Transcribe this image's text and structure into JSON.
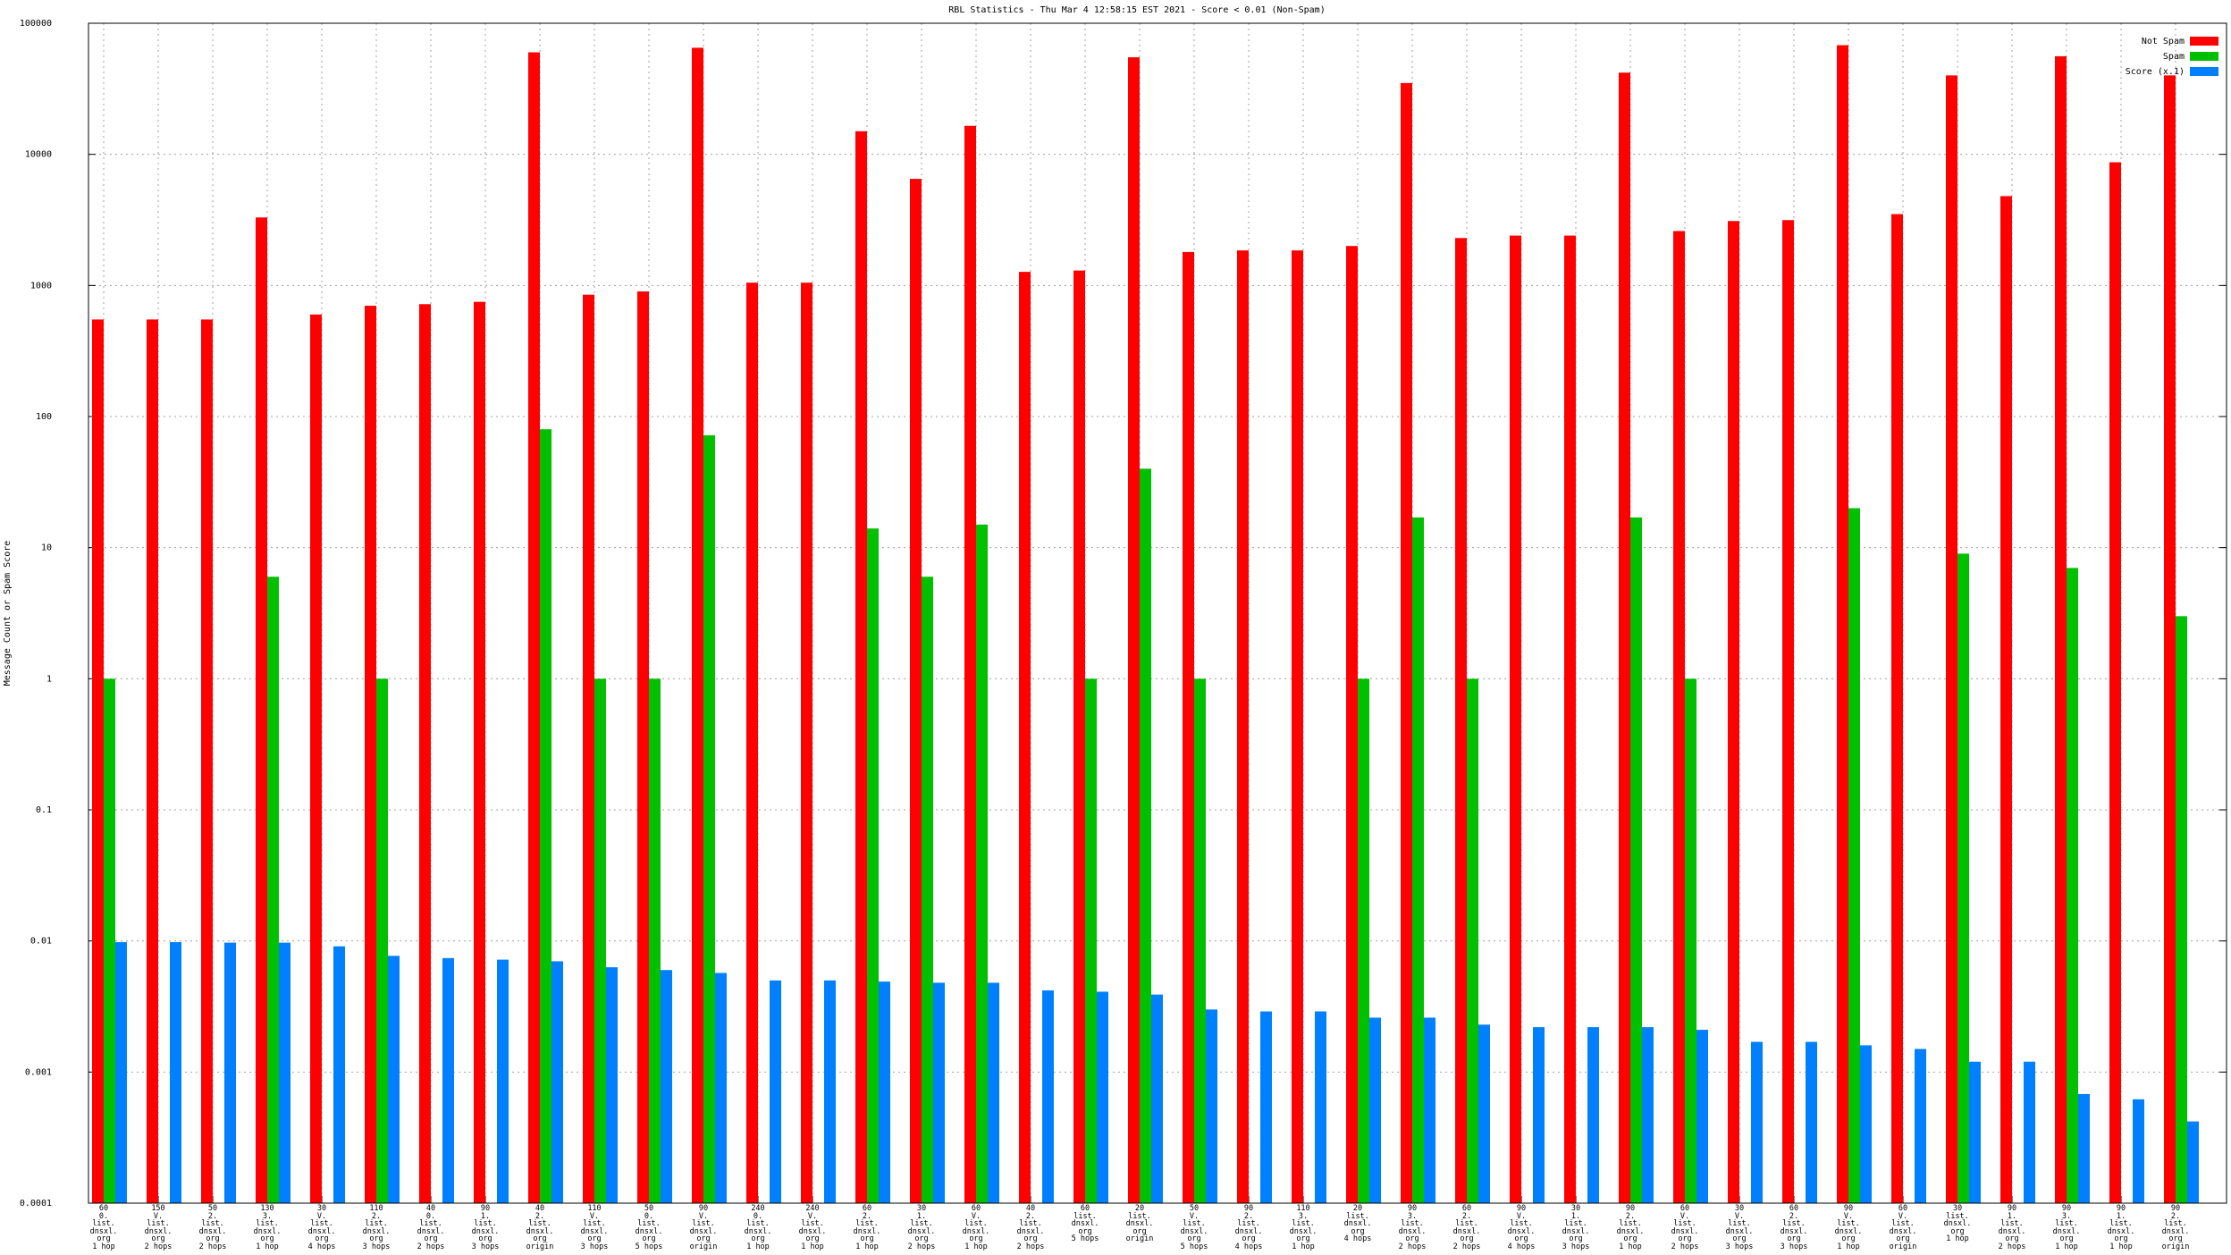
{
  "chart_data": {
    "type": "bar",
    "title": "RBL Statistics - Thu Mar  4 12:58:15 EST 2021 - Score < 0.01 (Non-Spam)",
    "y_label": "Message Count or Spam Score",
    "categories": [
      "60\n0.\nlist.\ndnsxl.\norg\n1 hop",
      "150\nV.\nlist.\ndnsxl.\norg\n2 hops",
      "50\n2.\nlist.\ndnsxl.\norg\n2 hops",
      "130\n3.\nlist.\ndnsxl.\norg\n1 hop",
      "30\nV.\nlist.\ndnsxl.\norg\n4 hops",
      "110\n2.\nlist.\ndnsxl.\norg\n3 hops",
      "40\n0.\nlist.\ndnsxl.\norg\n2 hops",
      "90\n1.\nlist.\ndnsxl.\norg\n3 hops",
      "40\n2.\nlist.\ndnsxl.\norg\norigin",
      "110\nV.\nlist.\ndnsxl.\norg\n3 hops",
      "50\n0.\nlist.\ndnsxl.\norg\n5 hops",
      "90\nV.\nlist.\ndnsxl.\norg\norigin",
      "240\n0.\nlist.\ndnsxl.\norg\n1 hop",
      "240\nV.\nlist.\ndnsxl.\norg\n1 hop",
      "60\n2.\nlist.\ndnsxl.\norg\n1 hop",
      "30\n1.\nlist.\ndnsxl.\norg\n2 hops",
      "60\nV.\nlist.\ndnsxl.\norg\n1 hop",
      "40\n2.\nlist.\ndnsxl.\norg\n2 hops",
      "60\nlist.\ndnsxl.\norg\n5 hops",
      "20\nlist.\ndnsxl.\norg\norigin",
      "50\nV.\nlist.\ndnsxl.\norg\n5 hops",
      "90\n2.\nlist.\ndnsxl.\norg\n4 hops",
      "110\n3.\nlist.\ndnsxl.\norg\n1 hop",
      "20\nlist.\ndnsxl.\norg\n4 hops",
      "90\n3.\nlist.\ndnsxl.\norg\n2 hops",
      "60\n2.\nlist.\ndnsxl.\norg\n2 hops",
      "90\nV.\nlist.\ndnsxl.\norg\n4 hops",
      "30\n1.\nlist.\ndnsxl.\norg\n3 hops",
      "90\n2.\nlist.\ndnsxl.\norg\n1 hop",
      "60\nV.\nlist.\ndnsxl.\norg\n2 hops",
      "30\nV.\nlist.\ndnsxl.\norg\n3 hops",
      "60\n2.\nlist.\ndnsxl.\norg\n3 hops",
      "90\nV.\nlist.\ndnsxl.\norg\n1 hop",
      "60\nV.\nlist.\ndnsxl.\norg\norigin",
      "30\nlist.\ndnsxl.\norg\n1 hop",
      "90\n1.\nlist.\ndnsxl.\norg\n2 hops",
      "90\n3.\nlist.\ndnsxl.\norg\n1 hop",
      "90\n1.\nlist.\ndnsxl.\norg\n1 hop",
      "90\n2.\nlist.\ndnsxl.\norg\norigin"
    ],
    "series": [
      {
        "name": "Not Spam",
        "color": "#ff0000",
        "values": [
          550,
          550,
          550,
          3300,
          600,
          700,
          720,
          750,
          60000,
          850,
          900,
          65000,
          1050,
          1050,
          15000,
          6500,
          16500,
          1270,
          1300,
          55000,
          1800,
          1850,
          1850,
          2000,
          35000,
          2300,
          2400,
          2400,
          42000,
          2600,
          3100,
          3150,
          68000,
          3500,
          40000,
          4800,
          56000,
          8700,
          40000
        ]
      },
      {
        "name": "Spam",
        "color": "#00c000",
        "values": [
          1,
          null,
          null,
          6,
          null,
          1,
          null,
          null,
          80,
          1,
          1,
          72,
          null,
          null,
          14,
          6,
          15,
          null,
          1,
          40,
          1,
          null,
          null,
          1,
          17,
          1,
          null,
          null,
          17,
          1,
          null,
          null,
          20,
          null,
          9,
          null,
          7,
          null,
          3
        ]
      },
      {
        "name": "Score (x.1)",
        "color": "#0080ff",
        "values": [
          0.0098,
          0.0098,
          0.0097,
          0.0097,
          0.0091,
          0.0077,
          0.0074,
          0.0072,
          0.007,
          0.0063,
          0.006,
          0.0057,
          0.005,
          0.005,
          0.0049,
          0.0048,
          0.0048,
          0.0042,
          0.0041,
          0.0039,
          0.003,
          0.0029,
          0.0029,
          0.0026,
          0.0026,
          0.0023,
          0.0022,
          0.0022,
          0.0022,
          0.0021,
          0.0017,
          0.0017,
          0.0016,
          0.0015,
          0.0012,
          0.0012,
          0.00068,
          0.00062,
          0.00042
        ]
      }
    ],
    "ylim": [
      0.0001,
      100000
    ],
    "yticks": [
      0.0001,
      0.001,
      0.01,
      0.1,
      1,
      10,
      100,
      1000,
      10000,
      100000
    ],
    "log_y": true,
    "grid": true,
    "legend": "top-right"
  }
}
